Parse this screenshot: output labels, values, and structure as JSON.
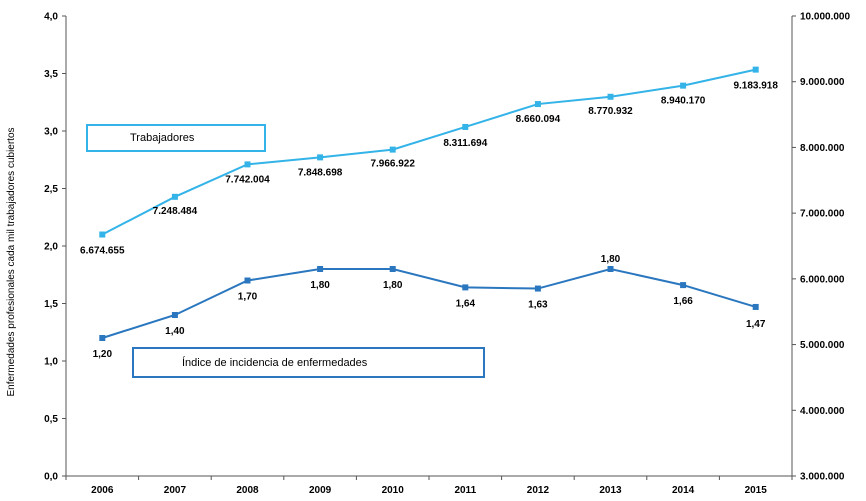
{
  "chart_data": {
    "type": "line",
    "categories": [
      "2006",
      "2007",
      "2008",
      "2009",
      "2010",
      "2011",
      "2012",
      "2013",
      "2014",
      "2015"
    ],
    "ylabel": "Enfermedades profesionales cada mil trabajadores cubiertos",
    "y_left_ticks": [
      "0,0",
      "0,5",
      "1,0",
      "1,5",
      "2,0",
      "2,5",
      "3,0",
      "3,5",
      "4,0"
    ],
    "y_right_ticks": [
      "3.000.000",
      "4.000.000",
      "5.000.000",
      "6.000.000",
      "7.000.000",
      "8.000.000",
      "9.000.000",
      "10.000.000"
    ],
    "ylim_left": [
      0,
      4
    ],
    "ylim_right": [
      3000000,
      10000000
    ],
    "series": [
      {
        "name": "Trabajadores",
        "axis": "right",
        "color": "#33b3e8",
        "values": [
          6674655,
          7248484,
          7742004,
          7848698,
          7966922,
          8311694,
          8660094,
          8770932,
          8940170,
          9183918
        ],
        "labels": [
          "6.674.655",
          "7.248.484",
          "7.742.004",
          "7.848.698",
          "7.966.922",
          "8.311.694",
          "8.660.094",
          "8.770.932",
          "8.940.170",
          "9.183.918"
        ]
      },
      {
        "name": "Índice de incidencia de enfermedades",
        "axis": "left",
        "color": "#2a77bf",
        "values": [
          1.2,
          1.4,
          1.7,
          1.8,
          1.8,
          1.64,
          1.63,
          1.8,
          1.66,
          1.47
        ],
        "labels": [
          "1,20",
          "1,40",
          "1,70",
          "1,80",
          "1,80",
          "1,64",
          "1,63",
          "1,80",
          "1,66",
          "1,47"
        ]
      }
    ]
  }
}
